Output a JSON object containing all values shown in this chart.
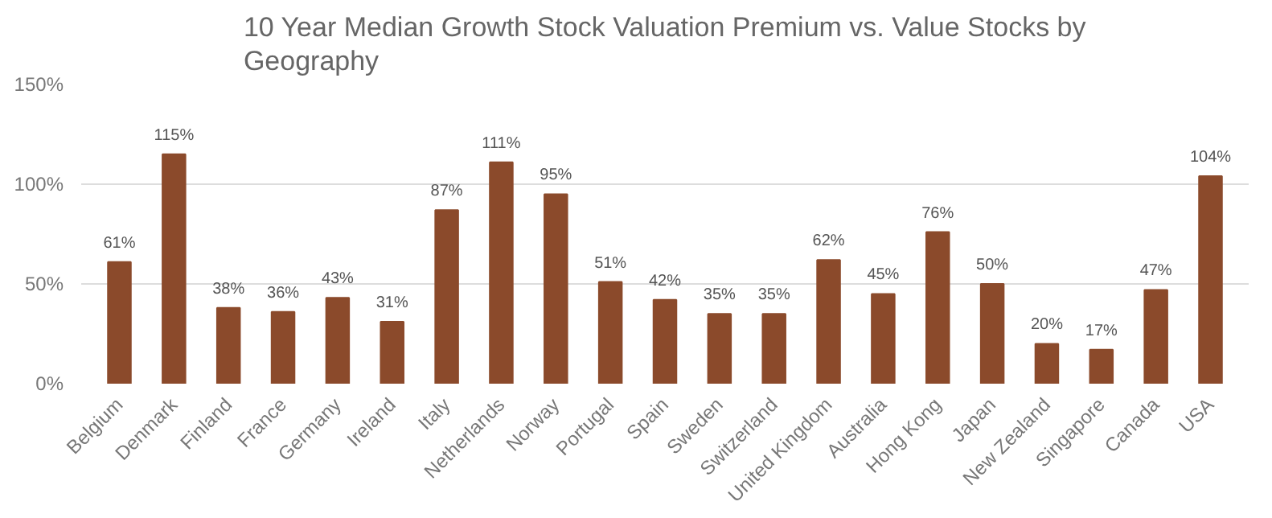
{
  "chart_data": {
    "type": "bar",
    "title": "10 Year Median Growth Stock Valuation Premium vs. Value Stocks by Geography",
    "categories": [
      "Belgium",
      "Denmark",
      "Finland",
      "France",
      "Germany",
      "Ireland",
      "Italy",
      "Netherlands",
      "Norway",
      "Portugal",
      "Spain",
      "Sweden",
      "Switzerland",
      "United Kingdom",
      "Australia",
      "Hong Kong",
      "Japan",
      "New Zealand",
      "Singapore",
      "Canada",
      "USA"
    ],
    "values": [
      61,
      115,
      38,
      36,
      43,
      31,
      87,
      111,
      95,
      51,
      42,
      35,
      35,
      62,
      45,
      76,
      50,
      20,
      17,
      47,
      104
    ],
    "value_labels": [
      "61%",
      "115%",
      "38%",
      "36%",
      "43%",
      "31%",
      "87%",
      "111%",
      "95%",
      "51%",
      "42%",
      "35%",
      "35%",
      "62%",
      "45%",
      "76%",
      "50%",
      "20%",
      "17%",
      "47%",
      "104%"
    ],
    "color": "#8b4a2b",
    "ylim": [
      0,
      150
    ],
    "yticks": [
      {
        "value": 0,
        "label": "0%"
      },
      {
        "value": 50,
        "label": "50%"
      },
      {
        "value": 100,
        "label": "100%"
      },
      {
        "value": 150,
        "label": "150%"
      }
    ],
    "grid": "y"
  }
}
